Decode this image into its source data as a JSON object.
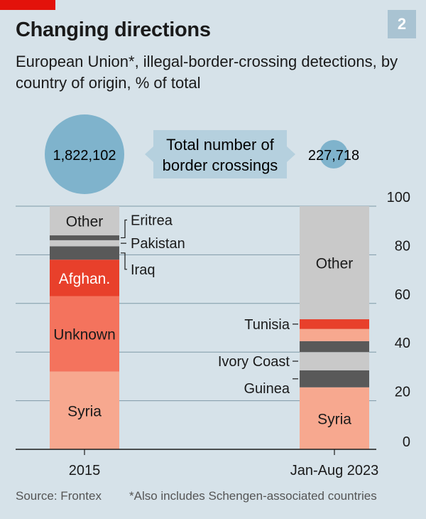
{
  "header": {
    "title": "Changing directions",
    "badge": "2",
    "subtitle": "European Union*, illegal-border-crossing detections, by country of origin, % of total"
  },
  "footer": {
    "source": "Source: Frontex",
    "footnote": "*Also includes Schengen-associated countries"
  },
  "totals": {
    "label": [
      "Total number of",
      "border crossings"
    ],
    "values": [
      {
        "period": "2015",
        "value": 1822102,
        "display": "1,822,102"
      },
      {
        "period": "Jan-Aug 2023",
        "value": 227718,
        "display": "227,718"
      }
    ]
  },
  "colors": {
    "background": "#d6e2e9",
    "syria": "#f7a88f",
    "unknown": "#f4735d",
    "afghanistan": "#e8402b",
    "dark_grey": "#595959",
    "light_grey": "#c9c9c9",
    "bubble": "#7fb3cc",
    "callout": "#b5d0de"
  },
  "chart_data": {
    "type": "bar",
    "stacked": true,
    "categories": [
      "2015",
      "Jan-Aug 2023"
    ],
    "ylim": [
      0,
      100
    ],
    "yticks": [
      0,
      20,
      40,
      60,
      80,
      100
    ],
    "grid": true,
    "segments": [
      [
        {
          "name": "Syria",
          "label": "Syria",
          "value": 32,
          "color": "#f7a88f",
          "label_inside": true,
          "label_color": "#1a1a1a"
        },
        {
          "name": "Unknown",
          "label": "Unknown",
          "value": 31,
          "color": "#f4735d",
          "label_inside": true,
          "label_color": "#1a1a1a"
        },
        {
          "name": "Afghan.",
          "label": "Afghan.",
          "value": 15,
          "color": "#e8402b",
          "label_inside": true,
          "label_color": "#ffffff"
        },
        {
          "name": "Iraq",
          "label": "Iraq",
          "value": 5.5,
          "color": "#595959",
          "label_inside": false
        },
        {
          "name": "Pakistan",
          "label": "Pakistan",
          "value": 2.5,
          "color": "#c9c9c9",
          "label_inside": false
        },
        {
          "name": "Eritrea",
          "label": "Eritrea",
          "value": 2,
          "color": "#595959",
          "label_inside": false
        },
        {
          "name": "Other",
          "label": "Other",
          "value": 12,
          "color": "#c9c9c9",
          "label_inside": true,
          "label_color": "#1a1a1a"
        }
      ],
      [
        {
          "name": "Syria",
          "label": "Syria",
          "value": 25.5,
          "color": "#f7a88f",
          "label_inside": true,
          "label_color": "#1a1a1a"
        },
        {
          "name": "Guinea",
          "label": "Guinea",
          "value": 7,
          "color": "#595959",
          "label_inside": false
        },
        {
          "name": "Ivory Coast",
          "label": "Ivory Coast",
          "value": 7.5,
          "color": "#c9c9c9",
          "label_inside": false
        },
        {
          "name": "dark-segment",
          "label": "",
          "value": 4.5,
          "color": "#595959",
          "label_inside": false
        },
        {
          "name": "peach-segment",
          "label": "",
          "value": 5,
          "color": "#f7a88f",
          "label_inside": false
        },
        {
          "name": "Tunisia",
          "label": "Tunisia",
          "value": 4,
          "color": "#e8402b",
          "label_inside": false
        },
        {
          "name": "Other",
          "label": "Other",
          "value": 46.5,
          "color": "#c9c9c9",
          "label_inside": true,
          "label_color": "#1a1a1a"
        }
      ]
    ]
  }
}
